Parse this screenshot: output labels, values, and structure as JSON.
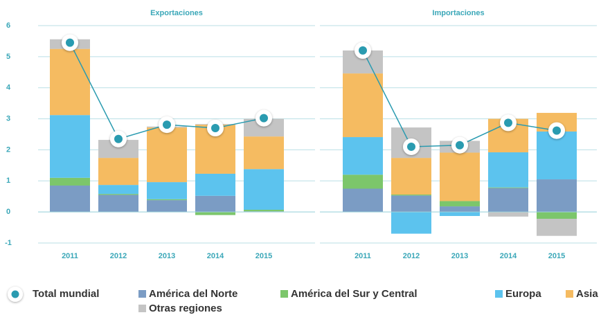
{
  "chart_data": [
    {
      "type": "bar",
      "title": "Exportaciones",
      "categories": [
        "2011",
        "2012",
        "2013",
        "2014",
        "2015"
      ],
      "ylim": [
        -1,
        6
      ],
      "yticks": [
        -1,
        0,
        1,
        2,
        3,
        4,
        5,
        6
      ],
      "grid": true,
      "series": [
        {
          "name": "Total mundial",
          "type": "line",
          "color": "#2a9bb0",
          "values": [
            5.45,
            2.35,
            2.81,
            2.7,
            3.02
          ]
        },
        {
          "name": "América del Norte",
          "color": "#7b9cc4",
          "values": [
            0.85,
            0.55,
            0.38,
            0.52,
            0.02
          ]
        },
        {
          "name": "América del Sur y Central",
          "color": "#7cc66b",
          "values": [
            0.25,
            0.03,
            0.03,
            -0.1,
            0.05
          ]
        },
        {
          "name": "Europa",
          "color": "#5cc3ee",
          "values": [
            2.02,
            0.29,
            0.55,
            0.71,
            1.31
          ]
        },
        {
          "name": "Asia",
          "color": "#f5bb61",
          "values": [
            2.13,
            0.87,
            1.76,
            1.58,
            1.05
          ]
        },
        {
          "name": "Otras regiones",
          "color": "#c4c4c4",
          "values": [
            0.31,
            0.58,
            0.03,
            0.02,
            0.57
          ]
        }
      ]
    },
    {
      "type": "bar",
      "title": "Importaciones",
      "categories": [
        "2011",
        "2012",
        "2013",
        "2014",
        "2015"
      ],
      "ylim": [
        -1,
        6
      ],
      "grid": true,
      "series": [
        {
          "type": "line",
          "color": "#2a9bb0",
          "values": [
            5.2,
            2.1,
            2.15,
            2.87,
            2.62
          ]
        },
        {
          "color": "#7b9cc4",
          "values": [
            0.75,
            0.53,
            0.18,
            0.77,
            1.05
          ]
        },
        {
          "color": "#7cc66b",
          "values": [
            0.45,
            0.03,
            0.17,
            0.02,
            -0.22
          ]
        },
        {
          "color": "#5cc3ee",
          "values": [
            1.21,
            -0.7,
            -0.13,
            1.13,
            1.54
          ]
        },
        {
          "color": "#f5bb61",
          "values": [
            2.05,
            1.18,
            1.56,
            1.08,
            0.6
          ]
        },
        {
          "color": "#c4c4c4",
          "values": [
            0.74,
            0.98,
            0.38,
            -0.15,
            -0.55
          ]
        }
      ]
    }
  ]
}
